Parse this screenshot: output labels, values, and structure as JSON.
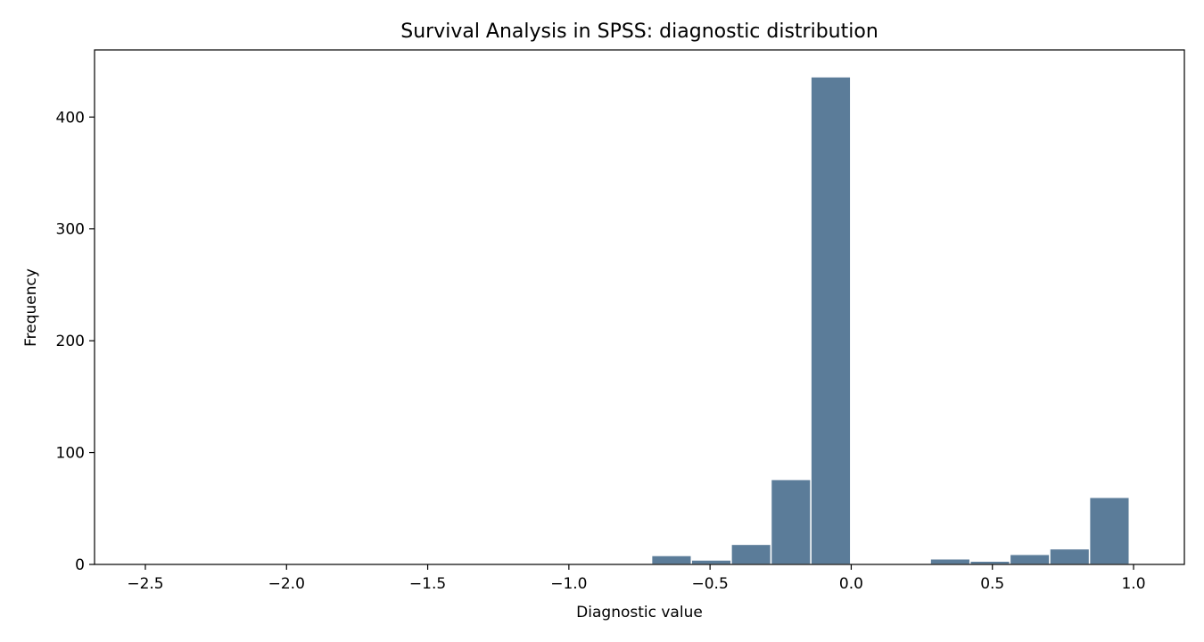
{
  "chart_data": {
    "type": "bar",
    "title": "Survival Analysis in SPSS: diagnostic distribution",
    "xlabel": "Diagnostic value",
    "ylabel": "Frequency",
    "xlim": [
      -2.68,
      1.18
    ],
    "ylim": [
      0,
      460
    ],
    "xticks": [
      -2.5,
      -2.0,
      -1.5,
      -1.0,
      -0.5,
      0.0,
      0.5,
      1.0
    ],
    "xtick_labels": [
      "−2.5",
      "−2.0",
      "−1.5",
      "−1.0",
      "−0.5",
      "0.0",
      "0.5",
      "1.0"
    ],
    "yticks": [
      0,
      100,
      200,
      300,
      400
    ],
    "ytick_labels": [
      "0",
      "100",
      "200",
      "300",
      "400"
    ],
    "bar_color": "#5b7c99",
    "bars": [
      {
        "x0": -0.989,
        "x1": -0.848,
        "value": 1
      },
      {
        "x0": -0.707,
        "x1": -0.566,
        "value": 8
      },
      {
        "x0": -0.566,
        "x1": -0.425,
        "value": 4
      },
      {
        "x0": -0.425,
        "x1": -0.284,
        "value": 18
      },
      {
        "x0": -0.284,
        "x1": -0.143,
        "value": 76
      },
      {
        "x0": -0.143,
        "x1": -0.002,
        "value": 436
      },
      {
        "x0": 0.28,
        "x1": 0.421,
        "value": 5
      },
      {
        "x0": 0.421,
        "x1": 0.562,
        "value": 3
      },
      {
        "x0": 0.562,
        "x1": 0.703,
        "value": 9
      },
      {
        "x0": 0.703,
        "x1": 0.844,
        "value": 14
      },
      {
        "x0": 0.844,
        "x1": 0.985,
        "value": 60
      }
    ]
  }
}
